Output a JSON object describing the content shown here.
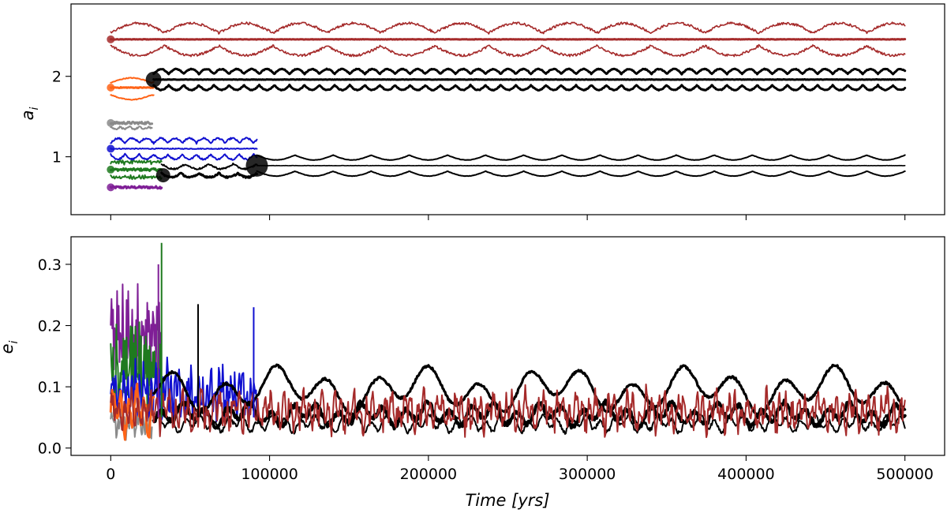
{
  "chart_data": [
    {
      "type": "line",
      "panel": "top",
      "title": "",
      "xlabel": "",
      "ylabel_text": "a",
      "ylabel_sub": "i",
      "xlim": [
        -25000,
        525000
      ],
      "ylim": [
        0.28,
        2.9
      ],
      "yticks": [
        1,
        2
      ],
      "ytick_labels": [
        "1",
        "2"
      ],
      "xticks": [
        0,
        100000,
        200000,
        300000,
        400000,
        500000
      ],
      "show_xtick_labels": false,
      "series": [
        {
          "name": "purple",
          "color": "#7f1f96",
          "curves": [
            {
              "x0": 0,
              "x1": 32000,
              "center": 0.62,
              "amp": 0.05,
              "period": 2000,
              "noise": 0.03,
              "width": 3
            }
          ]
        },
        {
          "name": "green",
          "color": "#1f7a1f",
          "curves": [
            {
              "x0": 0,
              "x1": 32000,
              "center": 0.84,
              "amp": 0.04,
              "period": 1500,
              "noise": 0.03,
              "width": 3
            },
            {
              "x0": 0,
              "x1": 32000,
              "center": 0.75,
              "amp": 0.03,
              "period": 1800,
              "noise": 0.03,
              "width": 2
            },
            {
              "x0": 0,
              "x1": 32000,
              "center": 0.93,
              "amp": 0.03,
              "period": 1700,
              "noise": 0.03,
              "width": 2
            }
          ]
        },
        {
          "name": "blue",
          "color": "#1010d0",
          "curves": [
            {
              "x0": 0,
              "x1": 92000,
              "center": 1.1,
              "amp": 0.02,
              "period": 3000,
              "noise": 0.01,
              "width": 2
            },
            {
              "x0": 0,
              "x1": 92000,
              "center": 1.2,
              "amp": 0.06,
              "period": 9000,
              "noise": 0.02,
              "width": 2
            },
            {
              "x0": 0,
              "x1": 92000,
              "center": 1.0,
              "amp": 0.06,
              "period": 9000,
              "noise": 0.02,
              "width": 2
            }
          ]
        },
        {
          "name": "grey",
          "color": "#8a8a8a",
          "curves": [
            {
              "x0": 0,
              "x1": 26000,
              "center": 1.42,
              "amp": 0.04,
              "period": 6000,
              "noise": 0.03,
              "width": 3
            },
            {
              "x0": 0,
              "x1": 26000,
              "center": 1.36,
              "amp": 0.03,
              "period": 6000,
              "noise": 0.02,
              "width": 2
            }
          ]
        },
        {
          "name": "orange",
          "color": "#ff6418",
          "curves": [
            {
              "x0": 0,
              "x1": 27000,
              "center": 1.86,
              "amp": 0.02,
              "period": 8000,
              "noise": 0.01,
              "width": 3
            },
            {
              "x0": 0,
              "x1": 27000,
              "center": 1.95,
              "amp": 0.06,
              "period": 26000,
              "noise": 0.01,
              "width": 2
            },
            {
              "x0": 0,
              "x1": 27000,
              "center": 1.74,
              "amp": 0.06,
              "period": 26000,
              "noise": 0.01,
              "width": 2
            }
          ]
        },
        {
          "name": "black-outer",
          "color": "#000000",
          "curves": [
            {
              "x0": 27000,
              "x1": 500000,
              "center": 1.96,
              "amp": 0.0,
              "period": 10000,
              "noise": 0.005,
              "width": 3
            },
            {
              "x0": 27000,
              "x1": 500000,
              "center": 2.06,
              "amp": 0.06,
              "period": 9500,
              "noise": 0.01,
              "width": 3
            },
            {
              "x0": 27000,
              "x1": 500000,
              "center": 1.86,
              "amp": 0.06,
              "period": 9500,
              "noise": 0.01,
              "width": 3
            },
            {
              "x0": 32000,
              "x1": 92000,
              "center": 0.77,
              "amp": 0.05,
              "period": 12000,
              "noise": 0.02,
              "width": 3
            },
            {
              "x0": 32000,
              "x1": 92000,
              "center": 0.88,
              "amp": 0.06,
              "period": 15000,
              "noise": 0.02,
              "width": 2
            },
            {
              "x0": 92000,
              "x1": 500000,
              "center": 0.89,
              "amp": 0.0,
              "period": 10000,
              "noise": 0.003,
              "width": 1.6
            },
            {
              "x0": 92000,
              "x1": 500000,
              "center": 0.99,
              "amp": 0.06,
              "period": 24000,
              "noise": 0.004,
              "width": 2
            },
            {
              "x0": 92000,
              "x1": 500000,
              "center": 0.79,
              "amp": 0.06,
              "period": 24000,
              "noise": 0.004,
              "width": 2
            }
          ]
        },
        {
          "name": "brown",
          "color": "#a52a2a",
          "curves": [
            {
              "x0": 0,
              "x1": 500000,
              "center": 2.46,
              "amp": 0.0,
              "period": 10000,
              "noise": 0.005,
              "width": 3
            },
            {
              "x0": 0,
              "x1": 500000,
              "center": 2.6,
              "amp": 0.12,
              "period": 34000,
              "noise": 0.03,
              "width": 1.6
            },
            {
              "x0": 0,
              "x1": 500000,
              "center": 2.32,
              "amp": 0.12,
              "period": 34000,
              "noise": 0.03,
              "width": 1.6
            }
          ]
        }
      ],
      "markers": [
        {
          "x": 0,
          "y": 0.62,
          "color": "#7f1f96",
          "r": 5
        },
        {
          "x": 0,
          "y": 0.84,
          "color": "#1f7a1f",
          "r": 5
        },
        {
          "x": 0,
          "y": 1.1,
          "color": "#1010d0",
          "r": 5
        },
        {
          "x": 0,
          "y": 1.42,
          "color": "#8a8a8a",
          "r": 5
        },
        {
          "x": 0,
          "y": 1.86,
          "color": "#ff6418",
          "r": 5
        },
        {
          "x": 0,
          "y": 2.46,
          "color": "#a52a2a",
          "r": 5
        },
        {
          "x": 27000,
          "y": 1.96,
          "color": "#000000",
          "r": 10
        },
        {
          "x": 33000,
          "y": 0.77,
          "color": "#000000",
          "r": 9
        },
        {
          "x": 92000,
          "y": 0.89,
          "color": "#000000",
          "r": 14
        }
      ]
    },
    {
      "type": "line",
      "panel": "bottom",
      "title": "",
      "xlabel_main": "Time",
      "xlabel_units": " [yrs]",
      "ylabel_text": "e",
      "ylabel_sub": "i",
      "xlim": [
        -25000,
        525000
      ],
      "ylim": [
        -0.012,
        0.345
      ],
      "yticks": [
        0.0,
        0.1,
        0.2,
        0.3
      ],
      "ytick_labels": [
        "0.0",
        "0.1",
        "0.2",
        "0.3"
      ],
      "xticks": [
        0,
        100000,
        200000,
        300000,
        400000,
        500000
      ],
      "xtick_labels": [
        "0",
        "100000",
        "200000",
        "300000",
        "400000",
        "500000"
      ],
      "series": [
        {
          "name": "purple",
          "color": "#7f1f96",
          "curves": [
            {
              "x0": 0,
              "x1": 32000,
              "base": 0.18,
              "amp": 0.07,
              "period": 1200,
              "noise": 0.07,
              "width": 2
            }
          ]
        },
        {
          "name": "green",
          "color": "#1f7a1f",
          "curves": [
            {
              "x0": 0,
              "x1": 32000,
              "base": 0.13,
              "amp": 0.06,
              "period": 1100,
              "noise": 0.08,
              "width": 2
            }
          ]
        },
        {
          "name": "blue",
          "color": "#1010d0",
          "curves": [
            {
              "x0": 0,
              "x1": 92000,
              "base": 0.09,
              "amp": 0.04,
              "period": 2500,
              "noise": 0.05,
              "width": 2
            }
          ]
        },
        {
          "name": "grey",
          "color": "#8a8a8a",
          "curves": [
            {
              "x0": 0,
              "x1": 26000,
              "base": 0.04,
              "amp": 0.02,
              "period": 2000,
              "noise": 0.02,
              "width": 2
            }
          ]
        },
        {
          "name": "orange",
          "color": "#ff6418",
          "curves": [
            {
              "x0": 0,
              "x1": 27000,
              "base": 0.06,
              "amp": 0.04,
              "period": 5000,
              "noise": 0.02,
              "width": 3
            }
          ]
        },
        {
          "name": "black",
          "color": "#000000",
          "curves": [
            {
              "x0": 27000,
              "x1": 500000,
              "base": 0.095,
              "amp": 0.04,
              "period": 32000,
              "noise": 0.004,
              "width": 3.2
            },
            {
              "x0": 27000,
              "x1": 500000,
              "base": 0.055,
              "amp": 0.02,
              "period": 14000,
              "noise": 0.008,
              "width": 4
            },
            {
              "x0": 27000,
              "x1": 500000,
              "base": 0.04,
              "amp": 0.015,
              "period": 9000,
              "noise": 0.006,
              "width": 2
            }
          ]
        },
        {
          "name": "brown",
          "color": "#a52a2a",
          "curves": [
            {
              "x0": 0,
              "x1": 500000,
              "base": 0.06,
              "amp": 0.03,
              "period": 4000,
              "noise": 0.03,
              "width": 2
            }
          ]
        }
      ],
      "annotation_peaks": [
        {
          "x": 32000,
          "y": 0.335,
          "color": "#1f7a1f"
        },
        {
          "x": 30000,
          "y": 0.3,
          "color": "#7f1f96"
        },
        {
          "x": 55000,
          "y": 0.235,
          "color": "#000000"
        },
        {
          "x": 90000,
          "y": 0.23,
          "color": "#1010d0"
        }
      ]
    }
  ]
}
